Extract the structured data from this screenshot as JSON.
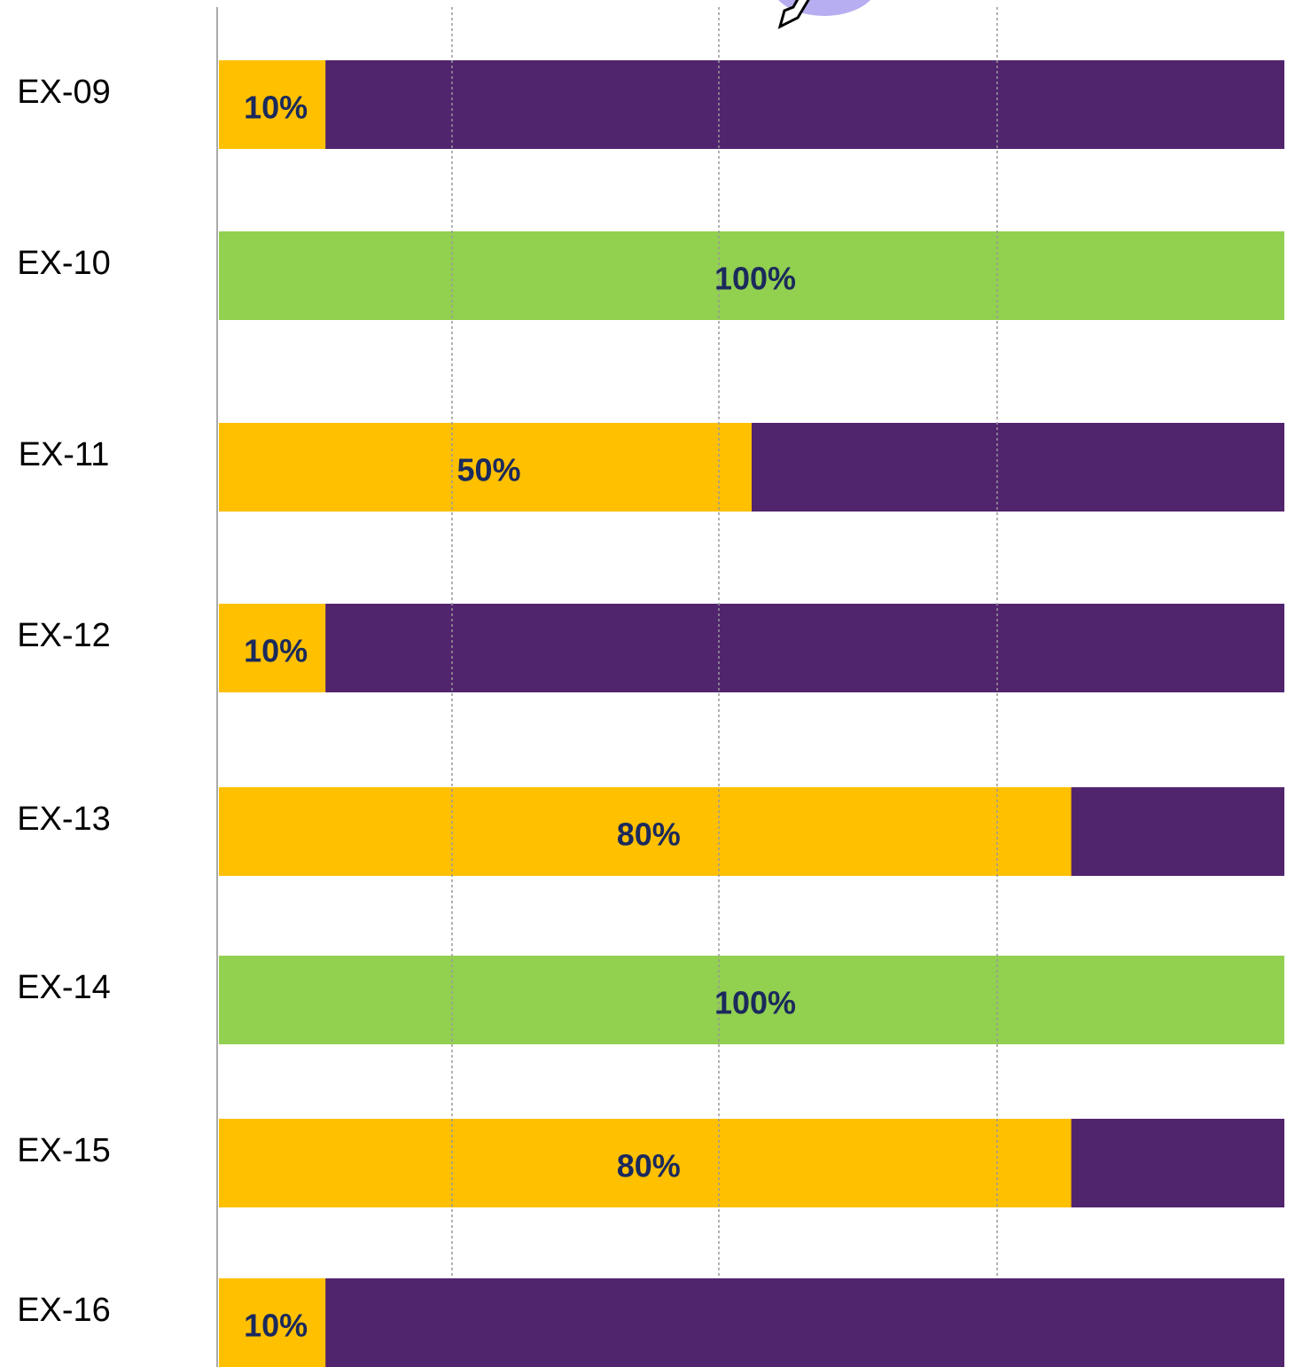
{
  "chart_data": {
    "type": "progress_bar",
    "categories": [
      "EX-09",
      "EX-10",
      "EX-11",
      "EX-12",
      "EX-13",
      "EX-14",
      "EX-15",
      "EX-16"
    ],
    "values": [
      10,
      100,
      50,
      10,
      80,
      100,
      80,
      10
    ],
    "value_labels": [
      "10%",
      "100%",
      "50%",
      "10%",
      "80%",
      "100%",
      "80%",
      "10%"
    ],
    "colors": [
      "#FFC000",
      "#92D050",
      "#FFC000",
      "#FFC000",
      "#FFC000",
      "#92D050",
      "#FFC000",
      "#FFC000"
    ],
    "track_color": "#51246E",
    "xlim": [
      0,
      100
    ]
  }
}
